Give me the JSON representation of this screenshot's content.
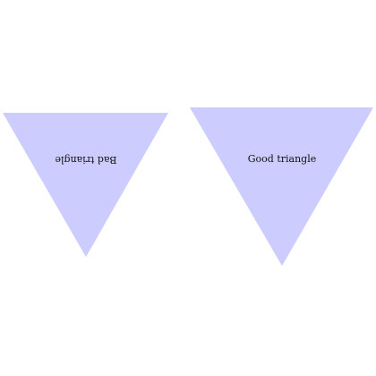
{
  "shapes": {
    "fill_color": "#ccccff",
    "triangles": [
      {
        "id": "bad",
        "label": "Bad triangle",
        "label_rotated": true
      },
      {
        "id": "good",
        "label": "Good triangle",
        "label_rotated": false
      }
    ]
  }
}
